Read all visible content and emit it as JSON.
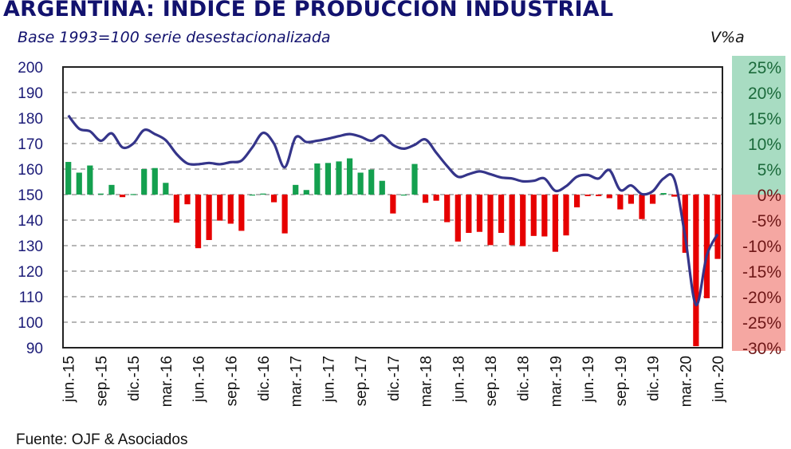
{
  "chart_data": {
    "type": "bar+line",
    "title": "ARGENTINA: INDICE DE PRODUCCION INDUSTRIAL",
    "subtitle": "Base 1993=100 serie desestacionalizada",
    "right_axis_label": "V%a",
    "source": "Fuente: OJF & Asociados",
    "x_tick_labels": [
      "jun.-15",
      "sep.-15",
      "dic.-15",
      "mar.-16",
      "jun.-16",
      "sep.-16",
      "dic.-16",
      "mar.-17",
      "jun.-17",
      "sep.-17",
      "dic.-17",
      "mar.-18",
      "jun.-18",
      "sep.-18",
      "dic.-18",
      "mar.-19",
      "jun.-19",
      "sep.-19",
      "dic.-19",
      "mar.-20",
      "jun.-20"
    ],
    "x_range": [
      "jun.-15",
      "jun.-20"
    ],
    "left_axis": {
      "ylim": [
        90,
        200
      ],
      "ticks": [
        "200",
        "190",
        "180",
        "170",
        "160",
        "150",
        "140",
        "130",
        "120",
        "110",
        "100",
        "90"
      ]
    },
    "right_axis": {
      "ylim": [
        -30,
        25
      ],
      "ticks": [
        "25%",
        "20%",
        "15%",
        "10%",
        "5%",
        "0%",
        "-5%",
        "-10%",
        "-15%",
        "-20%",
        "-25%",
        "-30%"
      ]
    },
    "grid": "dashed horizontal",
    "series": [
      {
        "type": "line",
        "axis": "left",
        "color": "#35358a",
        "values": [
          181,
          175.8,
          174.8,
          171.1,
          174,
          168.5,
          170,
          175.3,
          173.7,
          171.3,
          165.9,
          162.2,
          161.9,
          162.4,
          161.9,
          162.7,
          163.3,
          168.5,
          174.2,
          170,
          160.7,
          172.4,
          170.6,
          171.1,
          171.9,
          172.9,
          173.7,
          172.7,
          171.1,
          173.2,
          169.5,
          168,
          169.5,
          171.6,
          166.4,
          161.2,
          157,
          158,
          159.1,
          158,
          156.7,
          156.3,
          155.2,
          155.4,
          156.3,
          151.5,
          153.3,
          157,
          157.7,
          156.3,
          159.6,
          151.8,
          153.6,
          150.2,
          151.3,
          156.3,
          156,
          133.5,
          106.8,
          126.2,
          134.5
        ]
      },
      {
        "type": "bar",
        "axis": "right",
        "positive_color": "#14a04f",
        "negative_color": "#e60000",
        "values": [
          6.4,
          4.3,
          5.7,
          0.2,
          1.9,
          -0.5,
          0.1,
          5.0,
          5.2,
          2.3,
          -5.5,
          -1.9,
          -10.5,
          -8.9,
          -5.1,
          -5.7,
          -7.1,
          0,
          0.2,
          -1.5,
          -7.6,
          1.9,
          0.9,
          6.1,
          6.2,
          6.5,
          7.1,
          4.3,
          4.9,
          2.7,
          -3.7,
          0,
          6.0,
          -1.6,
          -1.2,
          -5.4,
          -9.2,
          -7.5,
          -7.3,
          -9.9,
          -7.5,
          -9.9,
          -10.1,
          -8.1,
          -8.2,
          -11.2,
          -8.0,
          -2.5,
          -0.3,
          -0.3,
          -0.7,
          -2.9,
          -1.8,
          -4.8,
          -1.8,
          0.3,
          -0.4,
          -11.4,
          -29.7,
          -20.3,
          -12.6
        ]
      }
    ],
    "colors": {
      "positive_band": "#a8dcc2",
      "negative_band": "#f5a7a2",
      "text_navy": "#12126e"
    }
  }
}
